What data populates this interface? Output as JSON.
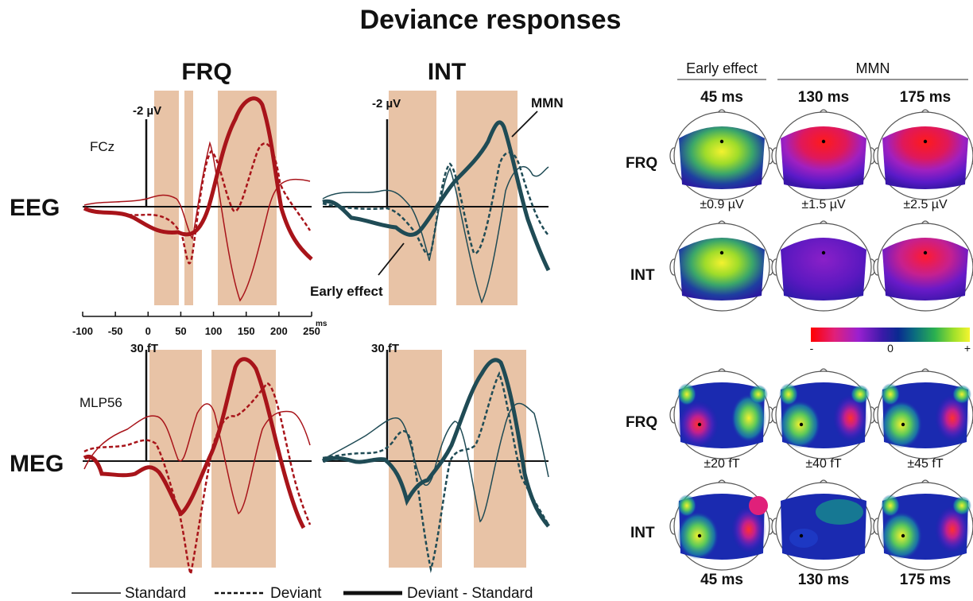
{
  "title": "Deviance responses",
  "columns": {
    "frq": "FRQ",
    "int": "INT"
  },
  "rows": {
    "eeg": "EEG",
    "meg": "MEG"
  },
  "eeg": {
    "channel": "FCz",
    "scale_label": "-2 µV"
  },
  "meg": {
    "channel": "MLP56",
    "scale_label": "30 fT"
  },
  "annotations": {
    "mmn": "MMN",
    "early_effect": "Early effect"
  },
  "time_axis": {
    "ticks": [
      "-100",
      "-50",
      "0",
      "50",
      "100",
      "150",
      "200",
      "250"
    ],
    "unit": "ms"
  },
  "legend": {
    "standard": "Standard",
    "deviant": "Deviant",
    "difference": "Deviant - Standard"
  },
  "topo": {
    "header_early": "Early effect",
    "header_mmn": "MMN",
    "times": [
      "45 ms",
      "130 ms",
      "175 ms"
    ],
    "row_labels": {
      "frq": "FRQ",
      "int": "INT"
    },
    "eeg_scales": [
      "±0.9 µV",
      "±1.5 µV",
      "±2.5 µV"
    ],
    "meg_scales": [
      "±20 fT",
      "±40 fT",
      "±45 fT"
    ],
    "colorbar": {
      "neg": "-",
      "zero": "0",
      "pos": "+"
    }
  },
  "colors": {
    "frq": "#a8141a",
    "int": "#1f4b55",
    "shade": "#e8c3a6"
  }
}
